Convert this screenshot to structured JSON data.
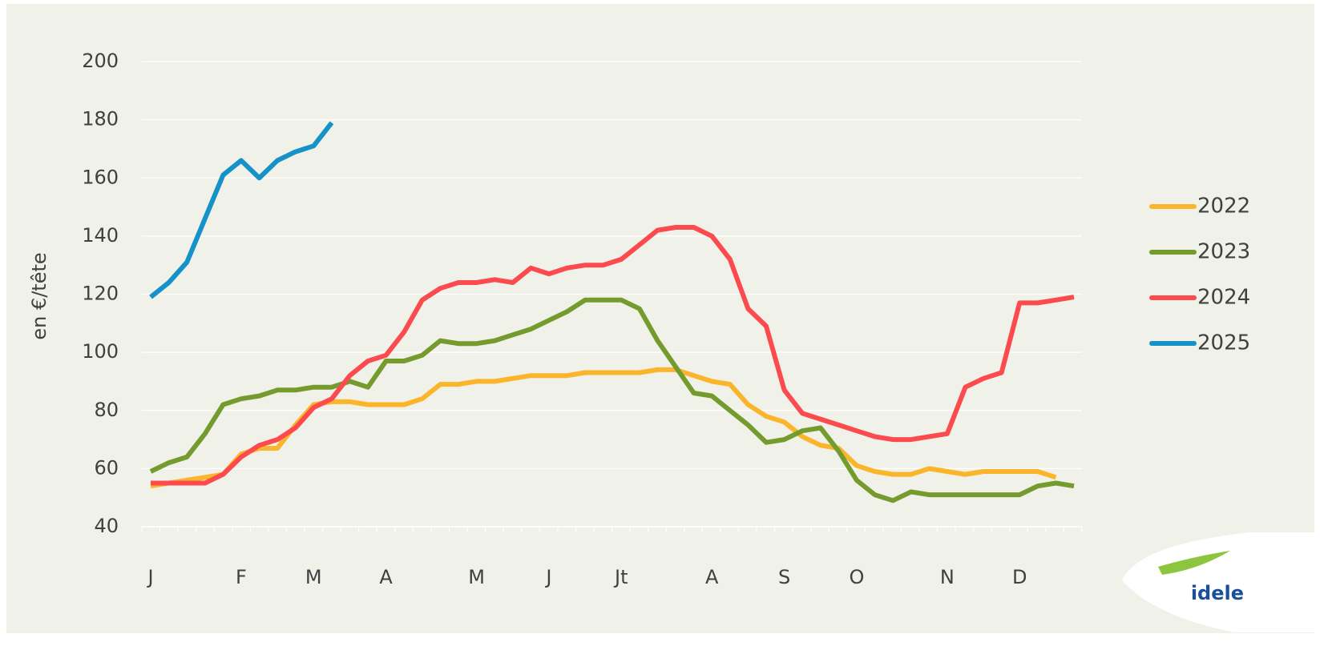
{
  "chart_data": {
    "type": "line",
    "y_label": "en €/tête",
    "logo_text": "idele",
    "categories": [
      "J",
      null,
      null,
      null,
      null,
      "F",
      null,
      null,
      null,
      "M",
      null,
      null,
      null,
      "A",
      null,
      null,
      null,
      null,
      "M",
      null,
      null,
      null,
      "J",
      null,
      null,
      null,
      "Jt",
      null,
      null,
      null,
      null,
      "A",
      null,
      null,
      null,
      "S",
      null,
      null,
      null,
      "O",
      null,
      null,
      null,
      null,
      "N",
      null,
      null,
      null,
      "D",
      null,
      null,
      null
    ],
    "ylim": [
      40,
      200
    ],
    "yticks": [
      40,
      60,
      80,
      100,
      120,
      140,
      160,
      180,
      200
    ],
    "grid": true,
    "legend": "right",
    "series": [
      {
        "name": "2022",
        "color": "#fbb52a",
        "values": [
          54,
          55,
          56,
          57,
          58,
          65,
          67,
          67,
          75,
          82,
          83,
          83,
          82,
          82,
          82,
          84,
          89,
          89,
          90,
          90,
          91,
          92,
          92,
          92,
          93,
          93,
          93,
          93,
          94,
          94,
          92,
          90,
          89,
          82,
          78,
          76,
          71,
          68,
          67,
          61,
          59,
          58,
          58,
          60,
          59,
          58,
          59,
          59,
          59,
          59,
          57,
          null
        ]
      },
      {
        "name": "2023",
        "color": "#759b2e",
        "values": [
          59,
          62,
          64,
          72,
          82,
          84,
          85,
          87,
          87,
          88,
          88,
          90,
          88,
          97,
          97,
          99,
          104,
          103,
          103,
          104,
          106,
          108,
          111,
          114,
          118,
          118,
          118,
          115,
          104,
          95,
          86,
          85,
          80,
          75,
          69,
          70,
          73,
          74,
          66,
          56,
          51,
          49,
          52,
          51,
          51,
          51,
          51,
          51,
          51,
          54,
          55,
          54
        ]
      },
      {
        "name": "2024",
        "color": "#fb4b4e",
        "values": [
          55,
          55,
          55,
          55,
          58,
          64,
          68,
          70,
          74,
          81,
          84,
          92,
          97,
          99,
          107,
          118,
          122,
          124,
          124,
          125,
          124,
          129,
          127,
          129,
          130,
          130,
          132,
          137,
          142,
          143,
          143,
          140,
          132,
          115,
          109,
          87,
          79,
          77,
          75,
          73,
          71,
          70,
          70,
          71,
          72,
          88,
          91,
          93,
          117,
          117,
          118,
          119
        ]
      },
      {
        "name": "2025",
        "color": "#1592c8",
        "values": [
          119,
          124,
          131,
          146,
          161,
          166,
          160,
          166,
          169,
          171,
          179,
          null,
          null,
          null,
          null,
          null,
          null,
          null,
          null,
          null,
          null,
          null,
          null,
          null,
          null,
          null,
          null,
          null,
          null,
          null,
          null,
          null,
          null,
          null,
          null,
          null,
          null,
          null,
          null,
          null,
          null,
          null,
          null,
          null,
          null,
          null,
          null,
          null,
          null,
          null,
          null,
          null
        ]
      }
    ]
  }
}
